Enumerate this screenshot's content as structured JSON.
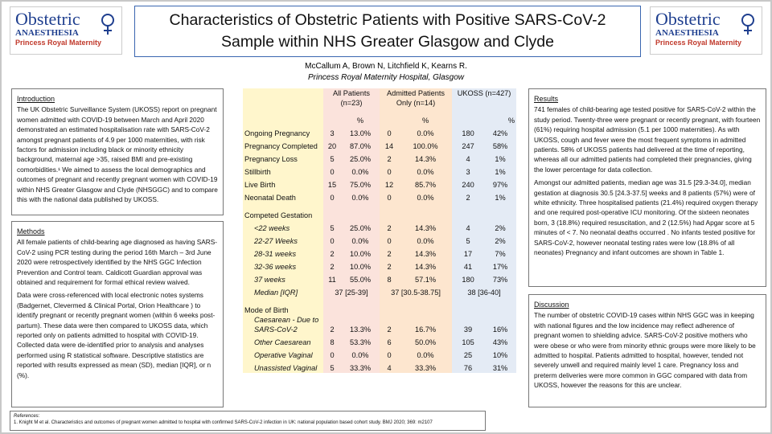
{
  "logos": {
    "left": {
      "name": "Obstetric",
      "sub": "ANAESTHESIA",
      "place": "Princess Royal Maternity"
    },
    "right": {
      "name": "Obstetric",
      "sub": "ANAESTHESIA",
      "place": "Princess Royal Maternity"
    }
  },
  "header": {
    "title": [
      "Characteristics of Obstetric Patients with Positive SARS-CoV-2",
      "Sample within NHS Greater Glasgow and Clyde"
    ],
    "authors": "McCallum A, Brown N, Litchfield K, Kearns R.",
    "affiliation": "Princess Royal Maternity Hospital, Glasgow"
  },
  "introduction": {
    "heading": "Introduction",
    "text": "The UK Obstetric Surveillance System (UKOSS) report on pregnant women admitted with COVID-19 between March and April 2020 demonstrated an estimated hospitalisation rate with SARS-CoV-2 amongst pregnant patients of 4.9 per 1000 maternities, with risk factors for admission including black or minority ethnicity background, maternal age >35, raised BMI and pre-existing comorbidities.¹ We aimed to assess the local demographics and outcomes of pregnant and recently pregnant women with COVID-19 within NHS Greater Glasgow and Clyde (NHSGGC) and to compare this with the national data published by UKOSS."
  },
  "methods": {
    "heading": "Methods",
    "paragraphs": [
      "All female patients of child-bearing age diagnosed as having SARS-CoV-2 using PCR testing during the period 16th March – 3rd June 2020 were retrospectively identified by the NHS GGC Infection Prevention and Control team. Caldicott Guardian approval was obtained and requirement for formal ethical review waived.",
      "Data were cross-referenced with local electronic notes systems (Badgernet, Clevermed & Clinical Portal, Orion Healthcare ) to identify pregnant or recently pregnant women (within 6 weeks post-partum). These data were then compared to UKOSS data, which reported only on patients admitted to hospital with COVID-19. Collected data were de-identified prior to analysis and analyses performed using R statistical software. Descriptive statistics are reported with results expressed as mean (SD), median [IQR], or n (%)."
    ]
  },
  "table": {
    "groups": [
      "All Patients (n=23)",
      "Admitted Patients Only (n=14)",
      "UKOSS (n=427)"
    ],
    "pct_header": "%",
    "rows": [
      [
        "Ongoing Pregnancy",
        "3",
        "13.0%",
        "0",
        "0.0%",
        "180",
        "42%"
      ],
      [
        "Pregnancy Completed",
        "20",
        "87.0%",
        "14",
        "100.0%",
        "247",
        "58%"
      ],
      [
        "Pregnancy Loss",
        "5",
        "25.0%",
        "2",
        "14.3%",
        "4",
        "1%"
      ],
      [
        "Stillbirth",
        "0",
        "0.0%",
        "0",
        "0.0%",
        "3",
        "1%"
      ],
      [
        "Live Birth",
        "15",
        "75.0%",
        "12",
        "85.7%",
        "240",
        "97%"
      ],
      [
        "Neonatal Death",
        "0",
        "0.0%",
        "0",
        "0.0%",
        "2",
        "1%"
      ],
      [
        "Competed Gestation"
      ],
      [
        "<22 weeks",
        "5",
        "25.0%",
        "2",
        "14.3%",
        "4",
        "2%"
      ],
      [
        "22-27 Weeks",
        "0",
        "0.0%",
        "0",
        "0.0%",
        "5",
        "2%"
      ],
      [
        "28-31 weeks",
        "2",
        "10.0%",
        "2",
        "14.3%",
        "17",
        "7%"
      ],
      [
        "32-36 weeks",
        "2",
        "10.0%",
        "2",
        "14.3%",
        "41",
        "17%"
      ],
      [
        "37 weeks",
        "11",
        "55.0%",
        "8",
        "57.1%",
        "180",
        "73%"
      ],
      [
        "Median [IQR]",
        "37 [25-39]",
        "37 [30.5-38.75]",
        "38 [36-40]"
      ],
      [
        "Mode of Birth"
      ],
      [
        "Caesarean - Due to SARS-CoV-2",
        "2",
        "13.3%",
        "2",
        "16.7%",
        "39",
        "16%"
      ],
      [
        "Other Caesarean",
        "8",
        "53.3%",
        "6",
        "50.0%",
        "105",
        "43%"
      ],
      [
        "Operative Vaginal",
        "0",
        "0.0%",
        "0",
        "0.0%",
        "25",
        "10%"
      ],
      [
        "Unassisted Vaginal",
        "5",
        "33.3%",
        "4",
        "33.3%",
        "76",
        "31%"
      ]
    ]
  },
  "results": {
    "heading": "Results",
    "paragraphs": [
      "741 females of child-bearing age tested positive for SARS-CoV-2 within the study period. Twenty-three were pregnant or recently pregnant, with fourteen (61%) requiring hospital admission (5.1 per 1000 maternities). As with UKOSS, cough and fever were the most frequent symptoms in admitted patients. 58% of UKOSS patients had delivered at the time of reporting, whereas all our admitted patients had completed their pregnancies, giving the lower percentage for data collection.",
      "Amongst our admitted patients, median age was 31.5 [29.3-34.0], median gestation at diagnosis 30.5 [24.3-37.5] weeks and 8 patients (57%) were of white ethnicity. Three hospitalised patients (21.4%) required oxygen therapy and one required post-operative ICU monitoring. Of the sixteen neonates born, 3 (18.8%) required resuscitation, and 2 (12.5%) had Apgar score at 5 minutes of < 7. No neonatal deaths occurred . No infants tested positive for SARS-CoV-2, however neonatal testing rates were low (18.8% of all neonates) Pregnancy and infant outcomes are shown in Table 1."
    ]
  },
  "discussion": {
    "heading": "Discussion",
    "text": "The number of obstetric COVID-19 cases within NHS GGC was in keeping with national figures and the low incidence may reflect adherence of pregnant women to shielding advice. SARS-CoV-2 positive mothers who were obese or who were from minority ethnic groups were more likely to be admitted to hospital. Patients admitted to hospital, however, tended not severely unwell and required mainly level 1 care. Pregnancy loss and preterm deliveries were more common in GGC compared with data from UKOSS, however the reasons for this are unclear."
  },
  "references": {
    "heading": "References:",
    "items": [
      "1. Knight M et al. Characteristics and outcomes of pregnant women admitted to hospital with confirmed SARS-CoV-2 infection in UK: national population based cohort study. BMJ 2020; 369: m2107"
    ]
  }
}
